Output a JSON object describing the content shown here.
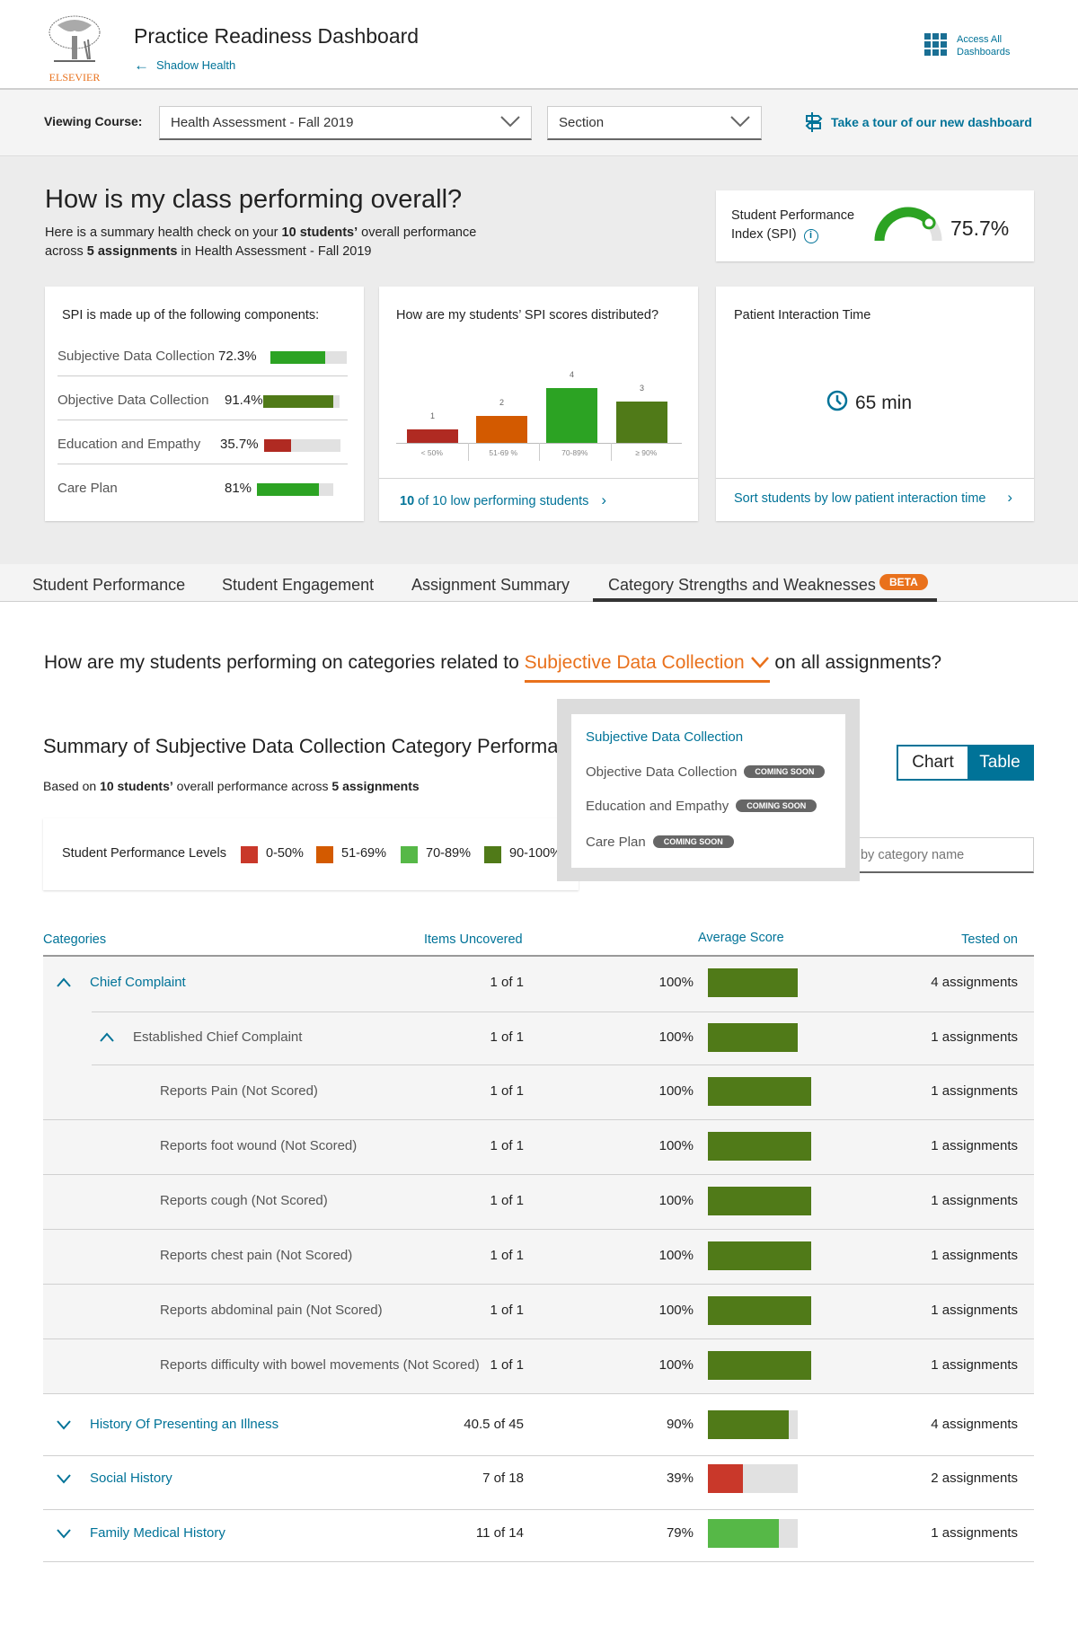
{
  "header": {
    "logo_text": "ELSEVIER",
    "title": "Practice Readiness Dashboard",
    "back_link": "Shadow Health",
    "access_all_line1": "Access All",
    "access_all_line2": "Dashboards"
  },
  "filters": {
    "viewing_course_label": "Viewing Course:",
    "course_value": "Health Assessment - Fall 2019",
    "section_value": "Section",
    "tour_link": "Take a tour of our new dashboard"
  },
  "overall": {
    "title": "How is my class performing overall?",
    "subtitle_pre": "Here is a summary health check on your ",
    "subtitle_students": "10 students’",
    "subtitle_mid": " overall performance",
    "subtitle_pre2": "across ",
    "subtitle_assignments": "5 assignments",
    "subtitle_post": " in Health Assessment - Fall 2019",
    "spi": {
      "label_line1": "Student Performance",
      "label_line2": "Index (SPI)",
      "value": "75.7%",
      "percent": 75.7
    },
    "components": {
      "title": "SPI is made up of the following components:",
      "items": [
        {
          "name": "Subjective Data Collection",
          "value": "72.3%",
          "percent": 72.3,
          "color": "#2ca323"
        },
        {
          "name": "Objective Data Collection",
          "value": "91.4%",
          "percent": 91.4,
          "color": "#507a18"
        },
        {
          "name": "Education and Empathy",
          "value": "35.7%",
          "percent": 35.7,
          "color": "#b02a22"
        },
        {
          "name": "Care Plan",
          "value": "81%",
          "percent": 81,
          "color": "#2ca323"
        }
      ]
    },
    "distribution": {
      "title": "How are my students’ SPI scores distributed?",
      "link_bold": "10",
      "link_rest": " of 10 low performing students"
    },
    "interaction": {
      "title": "Patient Interaction Time",
      "value": "65 min",
      "link": "Sort students by low patient interaction time"
    }
  },
  "chart_data": {
    "type": "bar",
    "categories": [
      "< 50%",
      "51-69 %",
      "70-89%",
      "≥ 90%"
    ],
    "values": [
      1,
      2,
      4,
      3
    ],
    "colors": [
      "#b02a22",
      "#d35a00",
      "#2ca323",
      "#507a18"
    ]
  },
  "tabs": [
    {
      "label": "Student Performance",
      "active": false
    },
    {
      "label": "Student Engagement",
      "active": false
    },
    {
      "label": "Assignment Summary",
      "active": false
    },
    {
      "label": "Category Strengths and Weaknesses",
      "active": true,
      "badge": "BETA"
    }
  ],
  "category_section": {
    "question_pre": "How are my students performing on categories related to ",
    "question_selected": "Subjective Data Collection",
    "question_post": " on all assignments?",
    "summary_title": "Summary of Subjective Data Collection Category Performance",
    "based_pre": "Based on ",
    "based_students": "10 students’",
    "based_mid": " overall performance across ",
    "based_assignments": "5 assignments",
    "legend": {
      "title": "Student Performance Levels",
      "items": [
        {
          "label": "0-50%",
          "color": "#c9382a"
        },
        {
          "label": "51-69%",
          "color": "#d35a00"
        },
        {
          "label": "70-89%",
          "color": "#56b847"
        },
        {
          "label": "90-100%",
          "color": "#507a18"
        }
      ]
    },
    "view_toggle": {
      "chart": "Chart",
      "table": "Table",
      "selected": "Table"
    },
    "search_placeholder": "Search by category name",
    "dropdown": {
      "items": [
        {
          "label": "Subjective Data Collection",
          "selected": true
        },
        {
          "label": "Objective Data Collection",
          "badge": "COMING SOON"
        },
        {
          "label": "Education and Empathy",
          "badge": "COMING SOON"
        },
        {
          "label": "Care Plan",
          "badge": "COMING SOON"
        }
      ]
    }
  },
  "table": {
    "headers": {
      "categories": "Categories",
      "items": "Items Uncovered",
      "average": "Average Score",
      "tested": "Tested on"
    },
    "rows": [
      {
        "level": 0,
        "toggle": "up",
        "name": "Chief Complaint",
        "items": "1 of 1",
        "avg": "100%",
        "percent": 100,
        "color": "#507a18",
        "tested": "4 assignments"
      },
      {
        "level": 1,
        "toggle": "up",
        "name": "Established Chief Complaint",
        "items": "1 of 1",
        "avg": "100%",
        "percent": 100,
        "color": "#507a18",
        "tested": "1 assignments"
      },
      {
        "level": 2,
        "name": "Reports Pain (Not Scored)",
        "items": "1 of 1",
        "avg": "100%",
        "percent": 100,
        "color": "#507a18",
        "tested": "1 assignments"
      },
      {
        "level": 2,
        "name": "Reports foot wound (Not Scored)",
        "items": "1 of 1",
        "avg": "100%",
        "percent": 100,
        "color": "#507a18",
        "tested": "1 assignments"
      },
      {
        "level": 2,
        "name": "Reports cough (Not Scored)",
        "items": "1 of 1",
        "avg": "100%",
        "percent": 100,
        "color": "#507a18",
        "tested": "1 assignments"
      },
      {
        "level": 2,
        "name": "Reports chest pain (Not Scored)",
        "items": "1 of 1",
        "avg": "100%",
        "percent": 100,
        "color": "#507a18",
        "tested": "1 assignments"
      },
      {
        "level": 2,
        "name": "Reports abdominal pain (Not Scored)",
        "items": "1 of 1",
        "avg": "100%",
        "percent": 100,
        "color": "#507a18",
        "tested": "1 assignments"
      },
      {
        "level": 2,
        "name": "Reports difficulty with bowel movements (Not Scored)",
        "items": "1 of 1",
        "avg": "100%",
        "percent": 100,
        "color": "#507a18",
        "tested": "1 assignments"
      },
      {
        "level": 0,
        "toggle": "down",
        "name": "History Of Presenting an Illness",
        "items": "40.5 of 45",
        "avg": "90%",
        "percent": 90,
        "color": "#507a18",
        "tested": "4 assignments"
      },
      {
        "level": 0,
        "toggle": "down",
        "name": "Social History",
        "items": "7 of 18",
        "avg": "39%",
        "percent": 39,
        "color": "#c9382a",
        "tested": "2 assignments"
      },
      {
        "level": 0,
        "toggle": "down",
        "name": "Family Medical History",
        "items": "11 of 14",
        "avg": "79%",
        "percent": 79,
        "color": "#56b847",
        "tested": "1 assignments"
      }
    ]
  }
}
